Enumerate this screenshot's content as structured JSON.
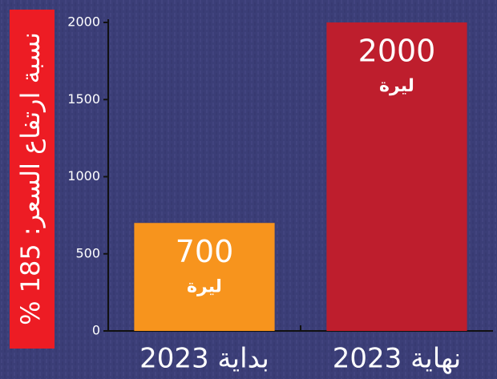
{
  "chart_data": {
    "type": "bar",
    "y_label": "نسبة ارتفاع السعر: 185 %",
    "categories": [
      "بداية 2023",
      "نهاية 2023"
    ],
    "values": [
      700,
      2000
    ],
    "colors": [
      "#f7941d",
      "#be1e2d"
    ],
    "value_unit": "ليرة",
    "ylim": [
      0,
      2000
    ],
    "yticks": [
      0,
      500,
      1000,
      1500,
      2000
    ]
  }
}
